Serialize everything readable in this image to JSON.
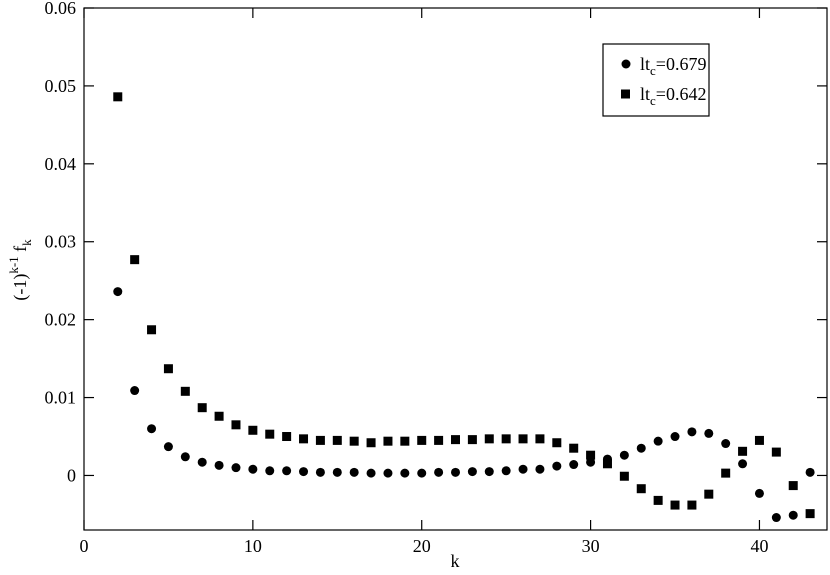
{
  "chart_data": {
    "type": "scatter",
    "x_label": "k",
    "y_label": "(-1)k-1 fk",
    "x": [
      2,
      3,
      4,
      5,
      6,
      7,
      8,
      9,
      10,
      11,
      12,
      13,
      14,
      15,
      16,
      17,
      18,
      19,
      20,
      21,
      22,
      23,
      24,
      25,
      26,
      27,
      28,
      29,
      30,
      31,
      32,
      33,
      34,
      35,
      36,
      37,
      38,
      39,
      40,
      41,
      42,
      43
    ],
    "series": [
      {
        "name": "ltc=0.679",
        "color": "#000000",
        "marker": "circle",
        "values": [
          0.0236,
          0.0109,
          0.006,
          0.0037,
          0.0024,
          0.0017,
          0.0013,
          0.001,
          0.0008,
          0.0006,
          0.0006,
          0.0005,
          0.0004,
          0.0004,
          0.0004,
          0.0003,
          0.0003,
          0.0003,
          0.0003,
          0.0004,
          0.0004,
          0.0005,
          0.0005,
          0.0006,
          0.0008,
          0.0008,
          0.0012,
          0.0014,
          0.0017,
          0.0021,
          0.0026,
          0.0035,
          0.0044,
          0.005,
          0.0056,
          0.0054,
          0.0041,
          0.0015,
          -0.0023,
          -0.0054,
          -0.0051,
          0.0004
        ]
      },
      {
        "name": "ltc=0.642",
        "color": "#000000",
        "marker": "square",
        "values": [
          0.0486,
          0.0277,
          0.0187,
          0.0137,
          0.0108,
          0.0087,
          0.0076,
          0.0065,
          0.0058,
          0.0053,
          0.005,
          0.0047,
          0.0045,
          0.0045,
          0.0044,
          0.0042,
          0.0044,
          0.0044,
          0.0045,
          0.0045,
          0.0046,
          0.0046,
          0.0047,
          0.0047,
          0.0047,
          0.0047,
          0.0042,
          0.0035,
          0.0026,
          0.0015,
          -0.0001,
          -0.0017,
          -0.0032,
          -0.0038,
          -0.0038,
          -0.0024,
          0.0003,
          0.0031,
          0.0045,
          0.003,
          -0.0013,
          -0.0049
        ]
      }
    ],
    "xlim": [
      0,
      44
    ],
    "ylim": [
      -0.007,
      0.06
    ],
    "xticks": [
      0,
      10,
      20,
      30,
      40
    ],
    "yticks": [
      0,
      0.01,
      0.02,
      0.03,
      0.04,
      0.05,
      0.06
    ],
    "legend": "upper-right"
  }
}
